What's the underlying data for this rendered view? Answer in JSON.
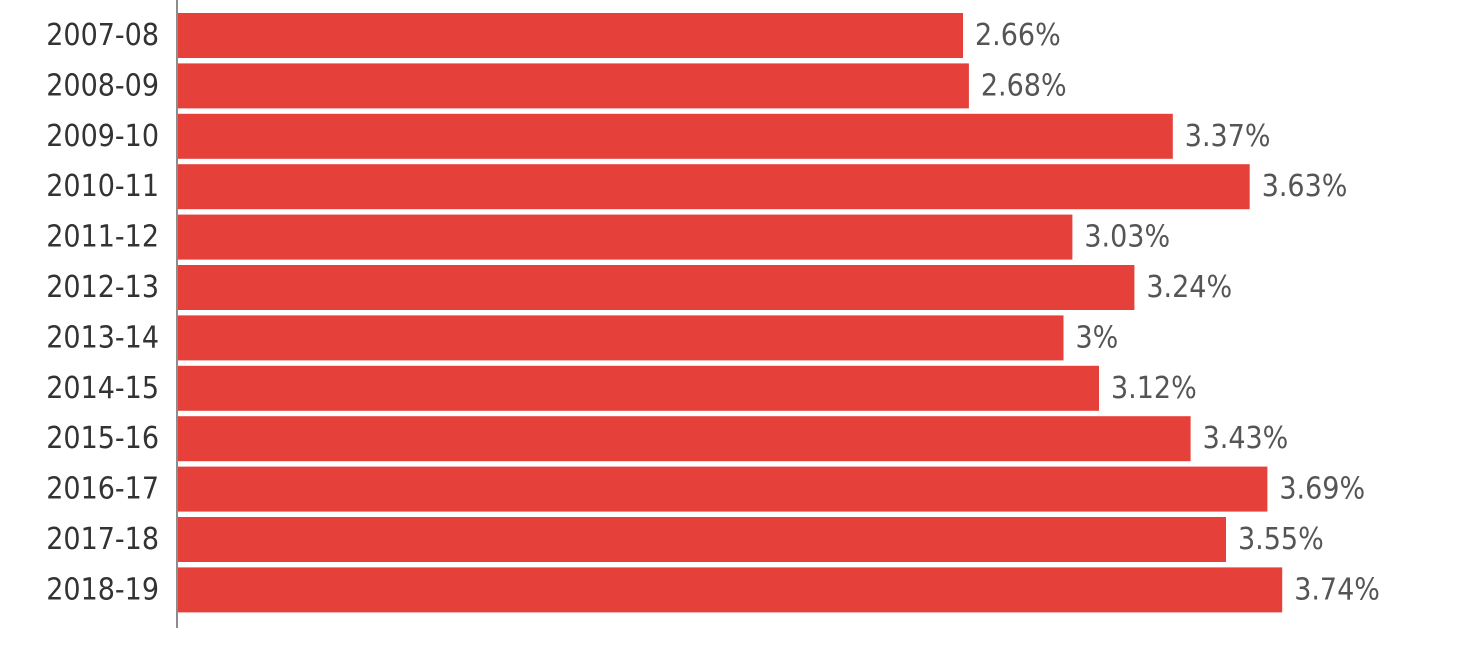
{
  "chart_data": {
    "type": "bar",
    "orientation": "horizontal",
    "categories": [
      "2007-08",
      "2008-09",
      "2009-10",
      "2010-11",
      "2011-12",
      "2012-13",
      "2013-14",
      "2014-15",
      "2015-16",
      "2016-17",
      "2017-18",
      "2018-19"
    ],
    "values": [
      2.66,
      2.68,
      3.37,
      3.63,
      3.03,
      3.24,
      3.0,
      3.12,
      3.43,
      3.69,
      3.55,
      3.74
    ],
    "data_labels": [
      "2.66%",
      "2.68%",
      "3.37%",
      "3.63%",
      "3.03%",
      "3.24%",
      "3%",
      "3.12%",
      "3.43%",
      "3.69%",
      "3.55%",
      "3.74%"
    ],
    "title": "",
    "xlabel": "",
    "ylabel": "",
    "xlim": [
      0,
      4
    ],
    "grid": false,
    "legend": "none",
    "bar_color": "#e5403a",
    "axis_color": "#8c8c8c"
  }
}
